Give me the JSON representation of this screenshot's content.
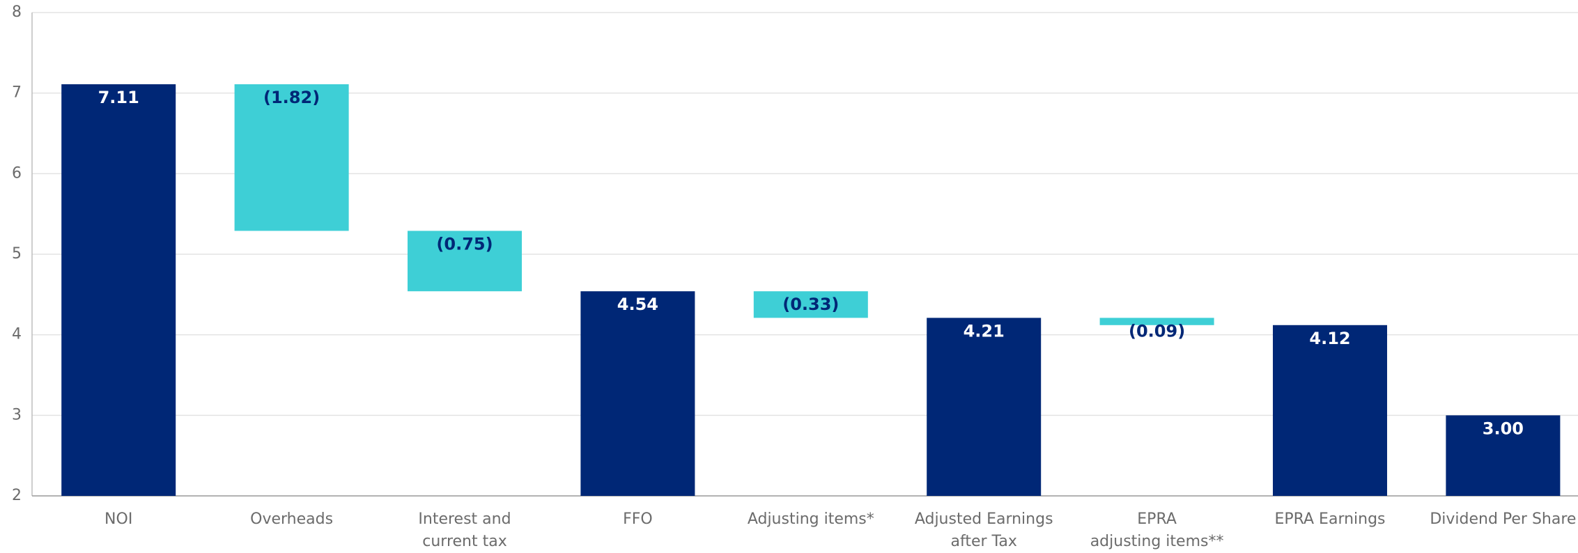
{
  "chart_data": {
    "type": "waterfall",
    "categories": [
      "NOI",
      "Overheads",
      "Interest and\ncurrent tax",
      "FFO",
      "Adjusting items*",
      "Adjusted Earnings\nafter Tax",
      "EPRA\nadjusting items**",
      "EPRA Earnings",
      "Dividend Per Share"
    ],
    "values": [
      7.11,
      -1.82,
      -0.75,
      4.54,
      -0.33,
      4.21,
      -0.09,
      4.12,
      3.0
    ],
    "value_labels": [
      "7.11",
      "(1.82)",
      "(0.75)",
      "4.54",
      "(0.33)",
      "4.21",
      "(0.09)",
      "4.12",
      "3.00"
    ],
    "color": "#002776",
    "negative_color": "#3ecfd6",
    "ylim": [
      2,
      8
    ],
    "yticks": [
      2,
      3,
      4,
      5,
      6,
      7,
      8
    ],
    "grid": true
  }
}
